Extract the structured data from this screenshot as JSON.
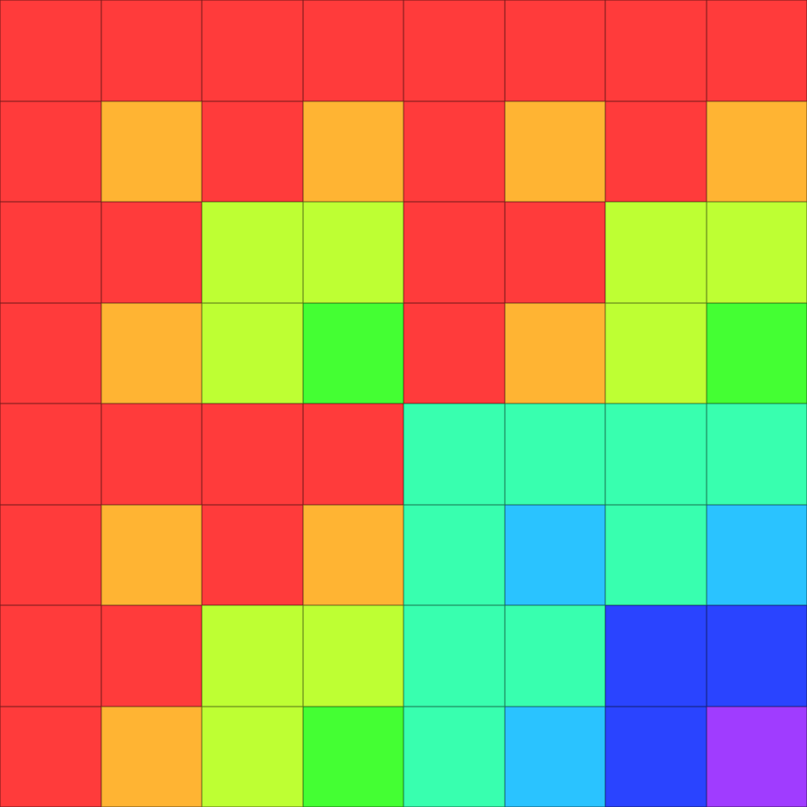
{
  "palette": [
    "#FF3B3B",
    "#FFB433",
    "#BEFF33",
    "#44FF33",
    "#38FFAF",
    "#2AC3FF",
    "#2A44FF",
    "#A03CFF"
  ],
  "grid": [
    [
      0,
      0,
      0,
      0,
      0,
      0,
      0,
      0
    ],
    [
      0,
      1,
      0,
      1,
      0,
      1,
      0,
      1
    ],
    [
      0,
      0,
      2,
      2,
      0,
      0,
      2,
      2
    ],
    [
      0,
      1,
      2,
      3,
      0,
      1,
      2,
      3
    ],
    [
      0,
      0,
      0,
      0,
      4,
      4,
      4,
      4
    ],
    [
      0,
      1,
      0,
      1,
      4,
      5,
      4,
      5
    ],
    [
      0,
      0,
      2,
      2,
      4,
      4,
      6,
      6
    ],
    [
      0,
      1,
      2,
      3,
      4,
      5,
      6,
      7
    ]
  ]
}
